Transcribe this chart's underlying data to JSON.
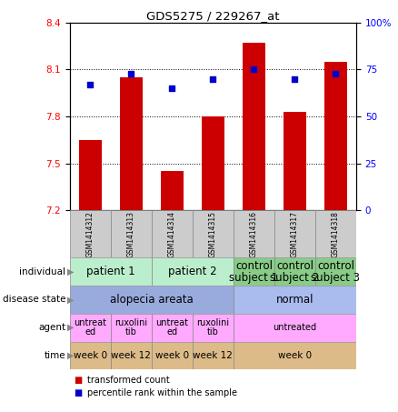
{
  "title": "GDS5275 / 229267_at",
  "samples": [
    "GSM1414312",
    "GSM1414313",
    "GSM1414314",
    "GSM1414315",
    "GSM1414316",
    "GSM1414317",
    "GSM1414318"
  ],
  "bar_values": [
    7.65,
    8.05,
    7.45,
    7.8,
    8.27,
    7.83,
    8.15
  ],
  "dot_values": [
    67,
    73,
    65,
    70,
    75,
    70,
    73
  ],
  "ylim_left": [
    7.2,
    8.4
  ],
  "ylim_right": [
    0,
    100
  ],
  "yticks_left": [
    7.2,
    7.5,
    7.8,
    8.1,
    8.4
  ],
  "yticks_right": [
    0,
    25,
    50,
    75,
    100
  ],
  "bar_color": "#cc0000",
  "dot_color": "#0000cc",
  "bar_bottom": 7.2,
  "annotations": {
    "individual": {
      "groups": [
        {
          "text": "patient 1",
          "cols": [
            0,
            1
          ],
          "color": "#bbeecc"
        },
        {
          "text": "patient 2",
          "cols": [
            2,
            3
          ],
          "color": "#bbeecc"
        },
        {
          "text": "control\nsubject 1",
          "cols": [
            4
          ],
          "color": "#88cc88"
        },
        {
          "text": "control\nsubject 2",
          "cols": [
            5
          ],
          "color": "#88cc88"
        },
        {
          "text": "control\nsubject 3",
          "cols": [
            6
          ],
          "color": "#88cc88"
        }
      ]
    },
    "disease_state": {
      "groups": [
        {
          "text": "alopecia areata",
          "cols": [
            0,
            1,
            2,
            3
          ],
          "color": "#99aadd"
        },
        {
          "text": "normal",
          "cols": [
            4,
            5,
            6
          ],
          "color": "#aabbee"
        }
      ]
    },
    "agent": {
      "groups": [
        {
          "text": "untreat\ned",
          "cols": [
            0
          ],
          "color": "#ffaaff"
        },
        {
          "text": "ruxolini\ntib",
          "cols": [
            1
          ],
          "color": "#ffaaff"
        },
        {
          "text": "untreat\ned",
          "cols": [
            2
          ],
          "color": "#ffaaff"
        },
        {
          "text": "ruxolini\ntib",
          "cols": [
            3
          ],
          "color": "#ffaaff"
        },
        {
          "text": "untreated",
          "cols": [
            4,
            5,
            6
          ],
          "color": "#ffaaff"
        }
      ]
    },
    "time": {
      "groups": [
        {
          "text": "week 0",
          "cols": [
            0
          ],
          "color": "#ddbb88"
        },
        {
          "text": "week 12",
          "cols": [
            1
          ],
          "color": "#ddbb88"
        },
        {
          "text": "week 0",
          "cols": [
            2
          ],
          "color": "#ddbb88"
        },
        {
          "text": "week 12",
          "cols": [
            3
          ],
          "color": "#ddbb88"
        },
        {
          "text": "week 0",
          "cols": [
            4,
            5,
            6
          ],
          "color": "#ddbb88"
        }
      ]
    }
  },
  "ann_row_labels": [
    "individual",
    "disease state",
    "agent",
    "time"
  ],
  "ann_row_keys": [
    "individual",
    "disease_state",
    "agent",
    "time"
  ],
  "legend": [
    {
      "color": "#cc0000",
      "label": "transformed count"
    },
    {
      "color": "#0000cc",
      "label": "percentile rank within the sample"
    }
  ]
}
